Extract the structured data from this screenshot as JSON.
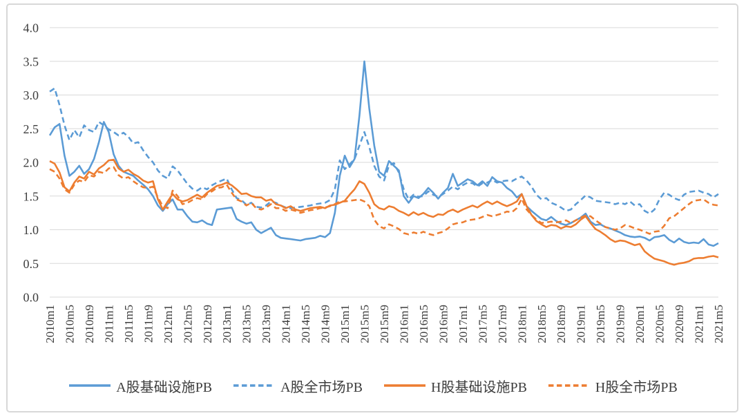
{
  "chart_data": {
    "type": "line",
    "title": "",
    "xlabel": "",
    "ylabel": "",
    "ylim": [
      0.0,
      4.0
    ],
    "grid": true,
    "legend_position": "bottom",
    "y_tick_labels": [
      "0.0",
      "0.5",
      "1.0",
      "1.5",
      "2.0",
      "2.5",
      "3.0",
      "3.5",
      "4.0"
    ],
    "x_tick_labels": [
      "2010m1",
      "2010m5",
      "2010m9",
      "2011m1",
      "2011m5",
      "2011m9",
      "2012m1",
      "2012m5",
      "2012m9",
      "2013m1",
      "2013m5",
      "2013m9",
      "2014m1",
      "2014m5",
      "2014m9",
      "2015m1",
      "2015m5",
      "2015m9",
      "2016m1",
      "2016m5",
      "2016m9",
      "2017m1",
      "2017m5",
      "2017m9",
      "2018m1",
      "2018m5",
      "2018m9",
      "2019m1",
      "2019m5",
      "2019m9",
      "2020m1",
      "2020m5",
      "2020m9",
      "2021m1",
      "2021m5"
    ],
    "x": [
      "2010m1",
      "2010m2",
      "2010m3",
      "2010m4",
      "2010m5",
      "2010m6",
      "2010m7",
      "2010m8",
      "2010m9",
      "2010m10",
      "2010m11",
      "2010m12",
      "2011m1",
      "2011m2",
      "2011m3",
      "2011m4",
      "2011m5",
      "2011m6",
      "2011m7",
      "2011m8",
      "2011m9",
      "2011m10",
      "2011m11",
      "2011m12",
      "2012m1",
      "2012m2",
      "2012m3",
      "2012m4",
      "2012m5",
      "2012m6",
      "2012m7",
      "2012m8",
      "2012m9",
      "2012m10",
      "2012m11",
      "2012m12",
      "2013m1",
      "2013m2",
      "2013m3",
      "2013m4",
      "2013m5",
      "2013m6",
      "2013m7",
      "2013m8",
      "2013m9",
      "2013m10",
      "2013m11",
      "2013m12",
      "2014m1",
      "2014m2",
      "2014m3",
      "2014m4",
      "2014m5",
      "2014m6",
      "2014m7",
      "2014m8",
      "2014m9",
      "2014m10",
      "2014m11",
      "2014m12",
      "2015m1",
      "2015m2",
      "2015m3",
      "2015m4",
      "2015m5",
      "2015m6",
      "2015m7",
      "2015m8",
      "2015m9",
      "2015m10",
      "2015m11",
      "2015m12",
      "2016m1",
      "2016m2",
      "2016m3",
      "2016m4",
      "2016m5",
      "2016m6",
      "2016m7",
      "2016m8",
      "2016m9",
      "2016m10",
      "2016m11",
      "2016m12",
      "2017m1",
      "2017m2",
      "2017m3",
      "2017m4",
      "2017m5",
      "2017m6",
      "2017m7",
      "2017m8",
      "2017m9",
      "2017m10",
      "2017m11",
      "2017m12",
      "2018m1",
      "2018m2",
      "2018m3",
      "2018m4",
      "2018m5",
      "2018m6",
      "2018m7",
      "2018m8",
      "2018m9",
      "2018m10",
      "2018m11",
      "2018m12",
      "2019m1",
      "2019m2",
      "2019m3",
      "2019m4",
      "2019m5",
      "2019m6",
      "2019m7",
      "2019m8",
      "2019m9",
      "2019m10",
      "2019m11",
      "2019m12",
      "2020m1",
      "2020m2",
      "2020m3",
      "2020m4",
      "2020m5",
      "2020m6",
      "2020m7",
      "2020m8",
      "2020m9",
      "2020m10",
      "2020m11",
      "2020m12",
      "2021m1",
      "2021m2",
      "2021m3",
      "2021m4",
      "2021m5"
    ],
    "series": [
      {
        "name": "A股基础设施PB",
        "color": "#5B9BD5",
        "dashed": false,
        "values": [
          2.4,
          2.52,
          2.57,
          2.1,
          1.8,
          1.86,
          1.95,
          1.83,
          1.9,
          2.05,
          2.3,
          2.6,
          2.45,
          2.12,
          1.95,
          1.86,
          1.83,
          1.8,
          1.73,
          1.67,
          1.6,
          1.5,
          1.36,
          1.28,
          1.38,
          1.45,
          1.3,
          1.3,
          1.2,
          1.12,
          1.11,
          1.14,
          1.09,
          1.07,
          1.3,
          1.31,
          1.32,
          1.33,
          1.16,
          1.12,
          1.09,
          1.11,
          1.0,
          0.95,
          0.99,
          1.03,
          0.92,
          0.88,
          0.87,
          0.86,
          0.85,
          0.84,
          0.86,
          0.87,
          0.88,
          0.91,
          0.89,
          0.95,
          1.25,
          1.8,
          2.1,
          1.93,
          2.05,
          2.7,
          3.5,
          2.8,
          2.25,
          1.86,
          1.8,
          2.02,
          1.95,
          1.88,
          1.5,
          1.4,
          1.5,
          1.47,
          1.53,
          1.62,
          1.55,
          1.46,
          1.55,
          1.62,
          1.83,
          1.65,
          1.7,
          1.75,
          1.72,
          1.66,
          1.72,
          1.65,
          1.78,
          1.72,
          1.7,
          1.62,
          1.57,
          1.48,
          1.53,
          1.35,
          1.28,
          1.22,
          1.16,
          1.14,
          1.19,
          1.13,
          1.09,
          1.07,
          1.1,
          1.14,
          1.18,
          1.24,
          1.12,
          1.07,
          1.08,
          1.04,
          1.02,
          0.99,
          0.96,
          0.92,
          0.9,
          0.89,
          0.9,
          0.88,
          0.84,
          0.89,
          0.9,
          0.92,
          0.85,
          0.81,
          0.87,
          0.82,
          0.8,
          0.81,
          0.8,
          0.86,
          0.78,
          0.76,
          0.8
        ]
      },
      {
        "name": "A股全市场PB",
        "color": "#5B9BD5",
        "dashed": true,
        "values": [
          3.05,
          3.1,
          2.85,
          2.55,
          2.33,
          2.48,
          2.37,
          2.55,
          2.48,
          2.45,
          2.6,
          2.55,
          2.49,
          2.45,
          2.4,
          2.44,
          2.38,
          2.28,
          2.3,
          2.18,
          2.08,
          2.0,
          1.88,
          1.8,
          1.76,
          1.94,
          1.88,
          1.78,
          1.68,
          1.61,
          1.58,
          1.63,
          1.6,
          1.66,
          1.7,
          1.73,
          1.76,
          1.6,
          1.47,
          1.44,
          1.37,
          1.4,
          1.34,
          1.33,
          1.36,
          1.42,
          1.4,
          1.36,
          1.33,
          1.32,
          1.33,
          1.34,
          1.35,
          1.36,
          1.38,
          1.39,
          1.4,
          1.44,
          1.6,
          2.03,
          1.9,
          1.97,
          2.05,
          2.25,
          2.45,
          2.23,
          1.95,
          1.79,
          1.73,
          1.95,
          1.99,
          1.85,
          1.6,
          1.45,
          1.52,
          1.49,
          1.5,
          1.57,
          1.52,
          1.49,
          1.53,
          1.58,
          1.64,
          1.6,
          1.66,
          1.7,
          1.69,
          1.64,
          1.69,
          1.7,
          1.74,
          1.7,
          1.72,
          1.73,
          1.72,
          1.76,
          1.79,
          1.73,
          1.64,
          1.52,
          1.45,
          1.47,
          1.4,
          1.37,
          1.33,
          1.28,
          1.3,
          1.38,
          1.44,
          1.51,
          1.48,
          1.43,
          1.42,
          1.41,
          1.4,
          1.38,
          1.4,
          1.38,
          1.42,
          1.36,
          1.38,
          1.28,
          1.24,
          1.3,
          1.45,
          1.55,
          1.52,
          1.47,
          1.44,
          1.52,
          1.56,
          1.57,
          1.58,
          1.55,
          1.53,
          1.48,
          1.53
        ]
      },
      {
        "name": "H股基础设施PB",
        "color": "#ED7D31",
        "dashed": false,
        "values": [
          2.02,
          1.98,
          1.85,
          1.63,
          1.57,
          1.7,
          1.79,
          1.76,
          1.86,
          1.82,
          1.91,
          1.96,
          2.03,
          2.04,
          1.91,
          1.86,
          1.89,
          1.83,
          1.79,
          1.73,
          1.7,
          1.72,
          1.45,
          1.3,
          1.42,
          1.53,
          1.45,
          1.42,
          1.44,
          1.48,
          1.52,
          1.48,
          1.55,
          1.6,
          1.65,
          1.67,
          1.7,
          1.66,
          1.6,
          1.53,
          1.54,
          1.5,
          1.48,
          1.48,
          1.43,
          1.45,
          1.38,
          1.36,
          1.32,
          1.35,
          1.3,
          1.28,
          1.3,
          1.32,
          1.33,
          1.34,
          1.32,
          1.36,
          1.37,
          1.4,
          1.43,
          1.52,
          1.6,
          1.72,
          1.68,
          1.55,
          1.38,
          1.32,
          1.3,
          1.35,
          1.33,
          1.28,
          1.25,
          1.21,
          1.26,
          1.22,
          1.25,
          1.21,
          1.19,
          1.23,
          1.22,
          1.27,
          1.3,
          1.26,
          1.3,
          1.33,
          1.36,
          1.33,
          1.38,
          1.42,
          1.38,
          1.42,
          1.38,
          1.35,
          1.38,
          1.42,
          1.53,
          1.35,
          1.22,
          1.13,
          1.08,
          1.04,
          1.07,
          1.06,
          1.02,
          1.05,
          1.04,
          1.08,
          1.15,
          1.2,
          1.1,
          1.01,
          0.97,
          0.92,
          0.86,
          0.82,
          0.84,
          0.83,
          0.8,
          0.77,
          0.79,
          0.68,
          0.62,
          0.57,
          0.55,
          0.53,
          0.5,
          0.48,
          0.5,
          0.51,
          0.53,
          0.57,
          0.58,
          0.58,
          0.6,
          0.61,
          0.59
        ]
      },
      {
        "name": "H股全市场PB",
        "color": "#ED7D31",
        "dashed": true,
        "values": [
          1.9,
          1.86,
          1.76,
          1.6,
          1.55,
          1.67,
          1.73,
          1.71,
          1.81,
          1.79,
          1.86,
          1.84,
          1.91,
          1.93,
          1.81,
          1.76,
          1.78,
          1.72,
          1.67,
          1.63,
          1.62,
          1.64,
          1.48,
          1.35,
          1.32,
          1.58,
          1.5,
          1.38,
          1.4,
          1.44,
          1.47,
          1.45,
          1.53,
          1.57,
          1.62,
          1.63,
          1.67,
          1.55,
          1.45,
          1.42,
          1.36,
          1.4,
          1.32,
          1.3,
          1.33,
          1.38,
          1.32,
          1.32,
          1.28,
          1.3,
          1.28,
          1.25,
          1.27,
          1.29,
          1.3,
          1.32,
          1.33,
          1.35,
          1.38,
          1.42,
          1.42,
          1.43,
          1.44,
          1.45,
          1.42,
          1.35,
          1.15,
          1.05,
          1.02,
          1.08,
          1.05,
          1.01,
          0.95,
          0.93,
          0.96,
          0.94,
          0.97,
          0.94,
          0.92,
          0.95,
          0.97,
          1.02,
          1.08,
          1.1,
          1.11,
          1.14,
          1.15,
          1.16,
          1.19,
          1.22,
          1.2,
          1.22,
          1.24,
          1.27,
          1.26,
          1.32,
          1.46,
          1.3,
          1.22,
          1.15,
          1.1,
          1.11,
          1.12,
          1.11,
          1.12,
          1.14,
          1.1,
          1.14,
          1.18,
          1.21,
          1.2,
          1.14,
          1.09,
          1.04,
          1.02,
          1.0,
          1.02,
          1.07,
          1.05,
          1.02,
          1.0,
          0.97,
          0.94,
          0.97,
          0.98,
          1.06,
          1.17,
          1.2,
          1.26,
          1.32,
          1.38,
          1.43,
          1.44,
          1.45,
          1.4,
          1.37,
          1.36
        ]
      }
    ]
  },
  "style": {
    "grid_color": "#d9d9d9",
    "text_color": "#3d3d3d",
    "frame_border_color": "#d8d8d8",
    "background": "#ffffff"
  }
}
